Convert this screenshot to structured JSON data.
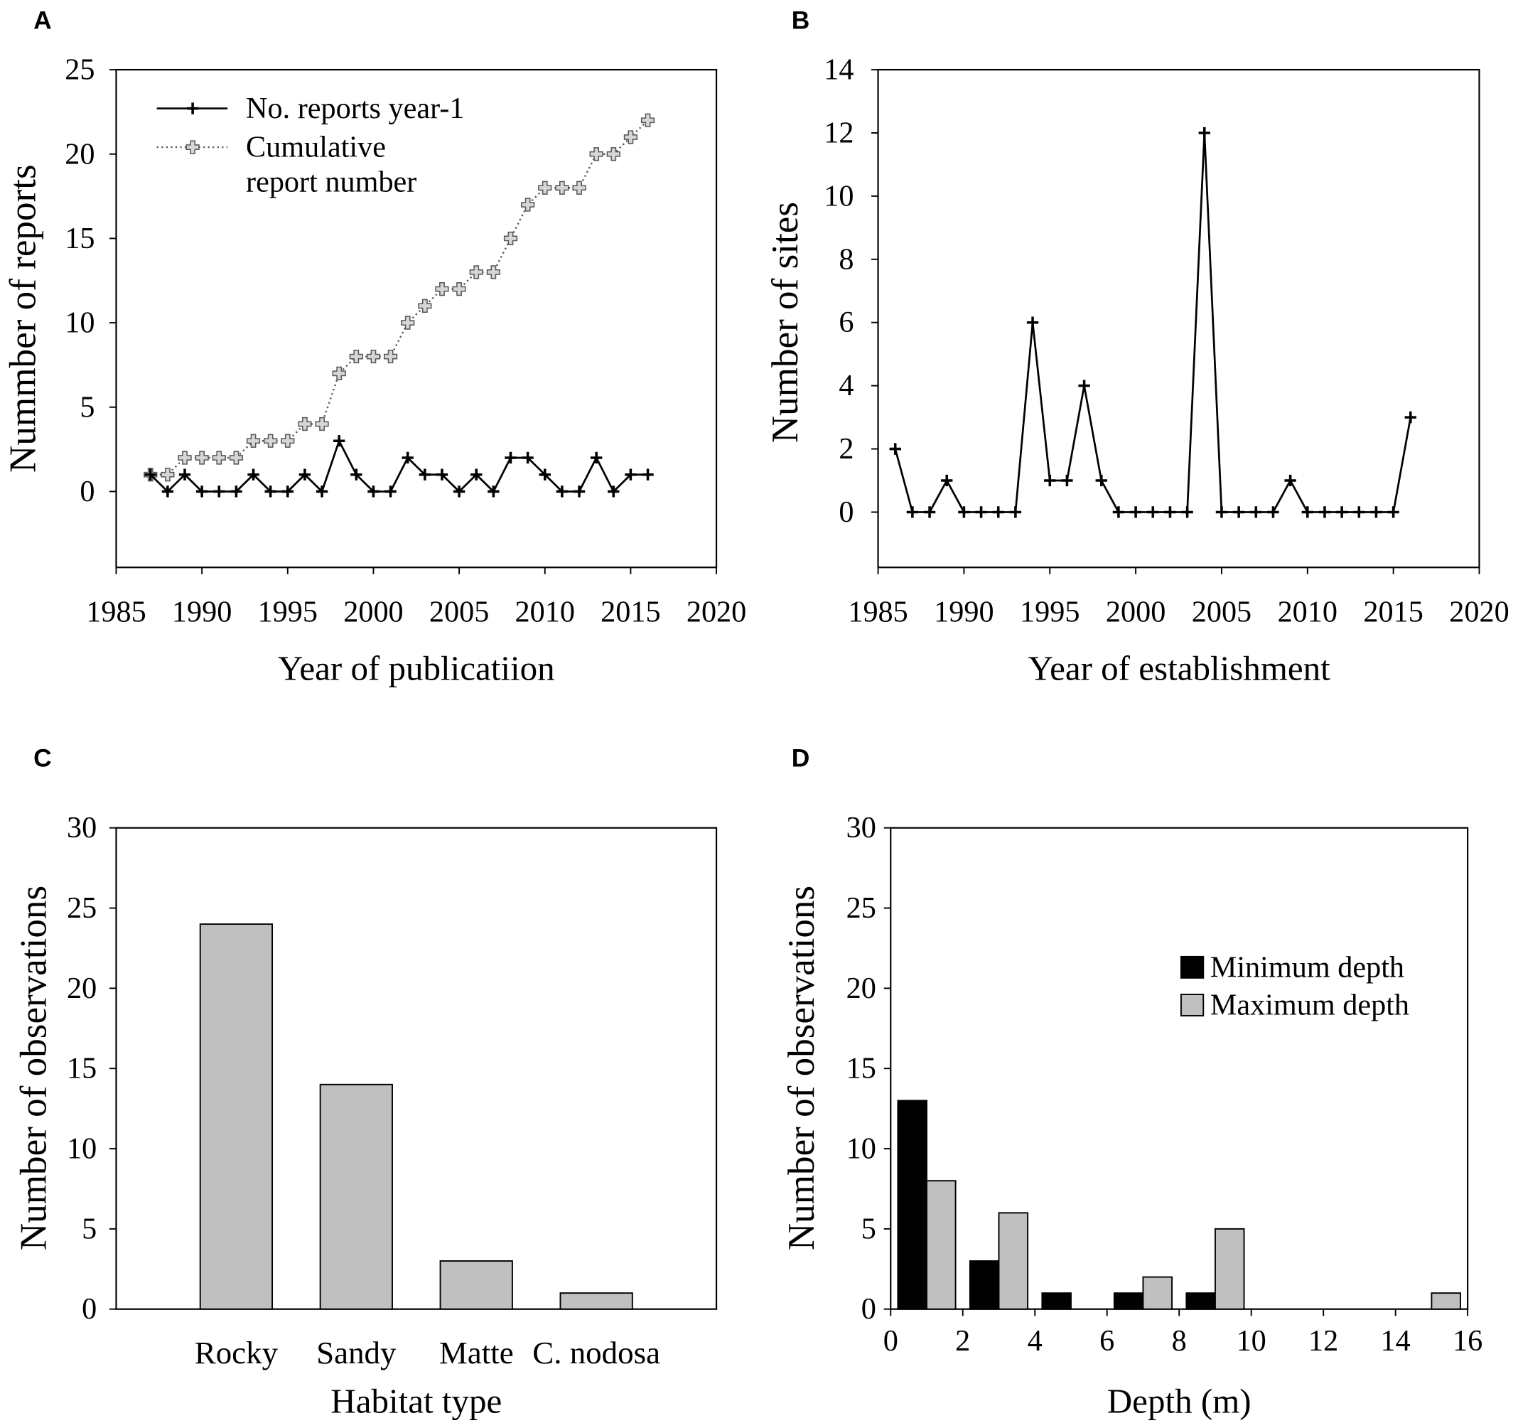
{
  "panel_labels": {
    "a": "A",
    "b": "B",
    "c": "C",
    "d": "D"
  },
  "chart_data": [
    {
      "panel": "A",
      "type": "line",
      "title": "",
      "xlabel": "Year of publicatiion",
      "ylabel": "Nummber of reports",
      "xlim": [
        1985,
        2020
      ],
      "ylim": [
        -4.5,
        25
      ],
      "xticks": [
        1985,
        1990,
        1995,
        2000,
        2005,
        2010,
        2015,
        2020
      ],
      "yticks": [
        0,
        5,
        10,
        15,
        20,
        25
      ],
      "x": [
        1987,
        1988,
        1989,
        1990,
        1991,
        1992,
        1993,
        1994,
        1995,
        1996,
        1997,
        1998,
        1999,
        2000,
        2001,
        2002,
        2003,
        2004,
        2005,
        2006,
        2007,
        2008,
        2009,
        2010,
        2011,
        2012,
        2013,
        2014,
        2015,
        2016
      ],
      "series": [
        {
          "legend": [
            "No. reports year-1"
          ],
          "line": "solid",
          "marker": "plus",
          "color": "#000000",
          "values": [
            1,
            0,
            1,
            0,
            0,
            0,
            1,
            0,
            0,
            1,
            0,
            3,
            1,
            0,
            0,
            2,
            1,
            1,
            0,
            1,
            0,
            2,
            2,
            1,
            0,
            0,
            2,
            0,
            1,
            1
          ]
        },
        {
          "legend": [
            "Cumulative",
            "report number"
          ],
          "line": "dotted",
          "marker": "open-plus",
          "color": "#555555",
          "values": [
            1,
            1,
            2,
            2,
            2,
            2,
            3,
            3,
            3,
            4,
            4,
            7,
            8,
            8,
            8,
            10,
            11,
            12,
            12,
            13,
            13,
            15,
            17,
            18,
            18,
            18,
            20,
            20,
            21,
            22
          ]
        }
      ],
      "legend_position": "top-left",
      "grid": false
    },
    {
      "panel": "B",
      "type": "line",
      "title": "",
      "xlabel": "Year of establishment",
      "ylabel": "Number of sites",
      "xlim": [
        1985,
        2020
      ],
      "ylim": [
        -1.75,
        14
      ],
      "xticks": [
        1985,
        1990,
        1995,
        2000,
        2005,
        2010,
        2015,
        2020
      ],
      "yticks": [
        0,
        2,
        4,
        6,
        8,
        10,
        12,
        14
      ],
      "x": [
        1986,
        1987,
        1988,
        1989,
        1990,
        1991,
        1992,
        1993,
        1994,
        1995,
        1996,
        1997,
        1998,
        1999,
        2000,
        2001,
        2002,
        2003,
        2004,
        2005,
        2006,
        2007,
        2008,
        2009,
        2010,
        2011,
        2012,
        2013,
        2014,
        2015,
        2016
      ],
      "series": [
        {
          "line": "solid",
          "marker": "plus",
          "color": "#000000",
          "values": [
            2,
            0,
            0,
            1,
            0,
            0,
            0,
            0,
            6,
            1,
            1,
            4,
            1,
            0,
            0,
            0,
            0,
            0,
            12,
            0,
            0,
            0,
            0,
            1,
            0,
            0,
            0,
            0,
            0,
            0,
            3
          ]
        }
      ],
      "grid": false
    },
    {
      "panel": "C",
      "type": "bar",
      "title": "",
      "xlabel": "Habitat type",
      "ylabel": "Number of observations",
      "ylim": [
        0,
        30
      ],
      "yticks": [
        0,
        5,
        10,
        15,
        20,
        25,
        30
      ],
      "categories": [
        "Rocky",
        "Sandy",
        "Matte",
        "C. nodosa"
      ],
      "values": [
        24,
        14,
        3,
        1
      ],
      "color": "#c0c0c0",
      "grid": false
    },
    {
      "panel": "D",
      "type": "bar",
      "title": "",
      "xlabel": "Depth (m)",
      "ylabel": "Number of observations",
      "xlim": [
        0,
        16
      ],
      "ylim": [
        0,
        30
      ],
      "xticks": [
        0,
        2,
        4,
        6,
        8,
        10,
        12,
        14,
        16
      ],
      "yticks": [
        0,
        5,
        10,
        15,
        20,
        25,
        30
      ],
      "bin_centers": [
        1,
        3,
        5,
        7,
        9,
        11,
        13,
        15
      ],
      "series": [
        {
          "legend": "Minimum depth",
          "color": "#000000",
          "values": [
            13,
            3,
            1,
            1,
            1,
            0,
            0,
            0
          ]
        },
        {
          "legend": "Maximum depth",
          "color": "#c0c0c0",
          "values": [
            8,
            6,
            0,
            2,
            5,
            0,
            0,
            1
          ]
        }
      ],
      "legend_position": "right",
      "grid": false
    }
  ]
}
